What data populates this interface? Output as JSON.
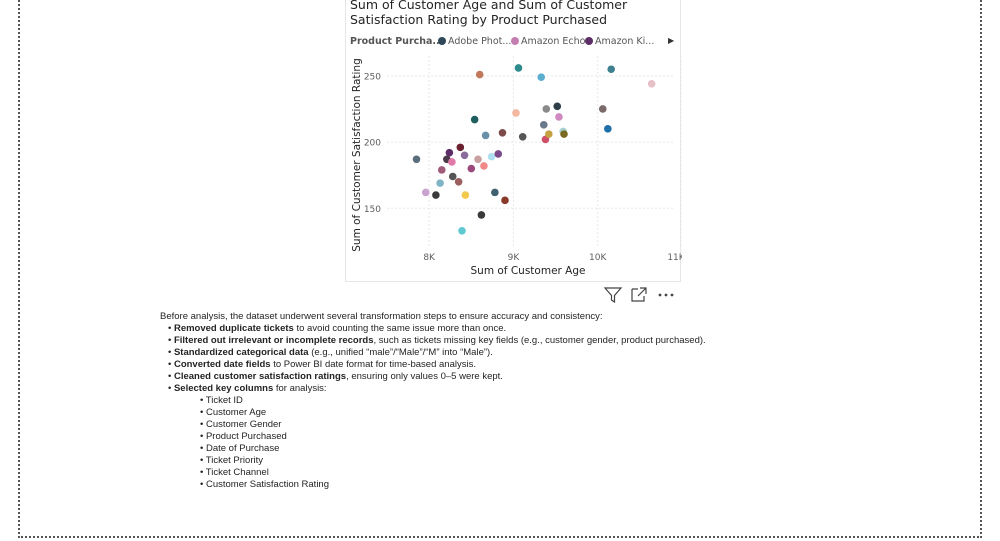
{
  "chart_data": {
    "type": "scatter",
    "title": "Sum of Customer Age and Sum of Customer Satisfaction Rating by Product Purchased",
    "xlabel": "Sum of Customer Age",
    "ylabel": "Sum of Customer Satisfaction Rating",
    "xlim": [
      7500,
      11000
    ],
    "ylim": [
      120,
      265
    ],
    "x_ticks": [
      {
        "v": 8000,
        "label": "8K"
      },
      {
        "v": 9000,
        "label": "9K"
      },
      {
        "v": 10000,
        "label": "10K"
      },
      {
        "v": 11000,
        "label": "11K"
      }
    ],
    "y_ticks": [
      150,
      200,
      250
    ],
    "grid": true,
    "legend": {
      "title": "Product Purcha...",
      "placement": "top",
      "items": [
        {
          "name": "Adobe Phot...",
          "color": "#2f4858"
        },
        {
          "name": "Amazon Echo",
          "color": "#c47fb0"
        },
        {
          "name": "Amazon Ki...",
          "color": "#5c2d66"
        }
      ]
    },
    "points": [
      {
        "x": 7850,
        "y": 187,
        "color": "#5a6e7c"
      },
      {
        "x": 7960,
        "y": 162,
        "color": "#c9a2cf"
      },
      {
        "x": 8080,
        "y": 160,
        "color": "#3b3b3b"
      },
      {
        "x": 8130,
        "y": 169,
        "color": "#7fb3c6"
      },
      {
        "x": 8150,
        "y": 179,
        "color": "#a05a7a"
      },
      {
        "x": 8210,
        "y": 187,
        "color": "#4a3a4a"
      },
      {
        "x": 8240,
        "y": 192,
        "color": "#5c2d66"
      },
      {
        "x": 8270,
        "y": 185,
        "color": "#e07aa8"
      },
      {
        "x": 8280,
        "y": 174,
        "color": "#555555"
      },
      {
        "x": 8350,
        "y": 170,
        "color": "#9c5f5f"
      },
      {
        "x": 8370,
        "y": 196,
        "color": "#6b2030"
      },
      {
        "x": 8390,
        "y": 133,
        "color": "#5ecad0"
      },
      {
        "x": 8420,
        "y": 190,
        "color": "#8b6b9b"
      },
      {
        "x": 8430,
        "y": 160,
        "color": "#f2c94c"
      },
      {
        "x": 8500,
        "y": 180,
        "color": "#9b4b7b"
      },
      {
        "x": 8540,
        "y": 217,
        "color": "#1f5f5f"
      },
      {
        "x": 8580,
        "y": 187,
        "color": "#c9a0a0"
      },
      {
        "x": 8600,
        "y": 251,
        "color": "#c0795a"
      },
      {
        "x": 8620,
        "y": 145,
        "color": "#3a3a3a"
      },
      {
        "x": 8650,
        "y": 182,
        "color": "#f08a8a"
      },
      {
        "x": 8670,
        "y": 205,
        "color": "#6a8fa8"
      },
      {
        "x": 8740,
        "y": 189,
        "color": "#b0e0ef"
      },
      {
        "x": 8780,
        "y": 162,
        "color": "#3e6070"
      },
      {
        "x": 8820,
        "y": 191,
        "color": "#7a4a8a"
      },
      {
        "x": 8870,
        "y": 207,
        "color": "#7c4c4c"
      },
      {
        "x": 8900,
        "y": 156,
        "color": "#8a3a2a"
      },
      {
        "x": 9030,
        "y": 222,
        "color": "#f4b8a0"
      },
      {
        "x": 9060,
        "y": 256,
        "color": "#2e8b8b"
      },
      {
        "x": 9110,
        "y": 204,
        "color": "#555555"
      },
      {
        "x": 9330,
        "y": 249,
        "color": "#5aaed0"
      },
      {
        "x": 9360,
        "y": 213,
        "color": "#6a7a8a"
      },
      {
        "x": 9380,
        "y": 202,
        "color": "#d0506a"
      },
      {
        "x": 9390,
        "y": 225,
        "color": "#8a8a8a"
      },
      {
        "x": 9420,
        "y": 206,
        "color": "#c4a040"
      },
      {
        "x": 9520,
        "y": 227,
        "color": "#2f3f4a"
      },
      {
        "x": 9540,
        "y": 219,
        "color": "#d08ac0"
      },
      {
        "x": 9590,
        "y": 208,
        "color": "#a8cfcf"
      },
      {
        "x": 9600,
        "y": 206,
        "color": "#7a6a20"
      },
      {
        "x": 10060,
        "y": 225,
        "color": "#7a6a6a"
      },
      {
        "x": 10120,
        "y": 210,
        "color": "#1f6fa8"
      },
      {
        "x": 10160,
        "y": 255,
        "color": "#3e7f90"
      },
      {
        "x": 10640,
        "y": 244,
        "color": "#e8c0c8"
      }
    ]
  },
  "toolbar": {
    "filter_icon": "filter-icon",
    "focus_icon": "focus-mode-icon",
    "more_icon": "more-options-icon"
  },
  "text": {
    "intro": "Before analysis, the dataset underwent several transformation steps to ensure accuracy and consistency:",
    "steps": [
      {
        "bold": "Removed duplicate tickets",
        "rest": " to avoid counting the same issue more than once."
      },
      {
        "bold": "Filtered out irrelevant or incomplete records",
        "rest": ", such as tickets missing key fields (e.g., customer gender, product purchased)."
      },
      {
        "bold": "Standardized categorical data",
        "rest": " (e.g., unified “male”/“Male”/“M” into “Male”)."
      },
      {
        "bold": "Converted date fields",
        "rest": " to Power BI date format for time-based analysis."
      },
      {
        "bold": "Cleaned customer satisfaction ratings",
        "rest": ", ensuring only values 0–5 were kept."
      },
      {
        "bold": "Selected key columns",
        "rest": " for analysis:"
      }
    ],
    "columns": [
      "Ticket ID",
      "Customer Age",
      "Customer Gender",
      "Product Purchased",
      "Date of Purchase",
      "Ticket Priority",
      "Ticket Channel",
      "Customer Satisfaction Rating"
    ]
  }
}
